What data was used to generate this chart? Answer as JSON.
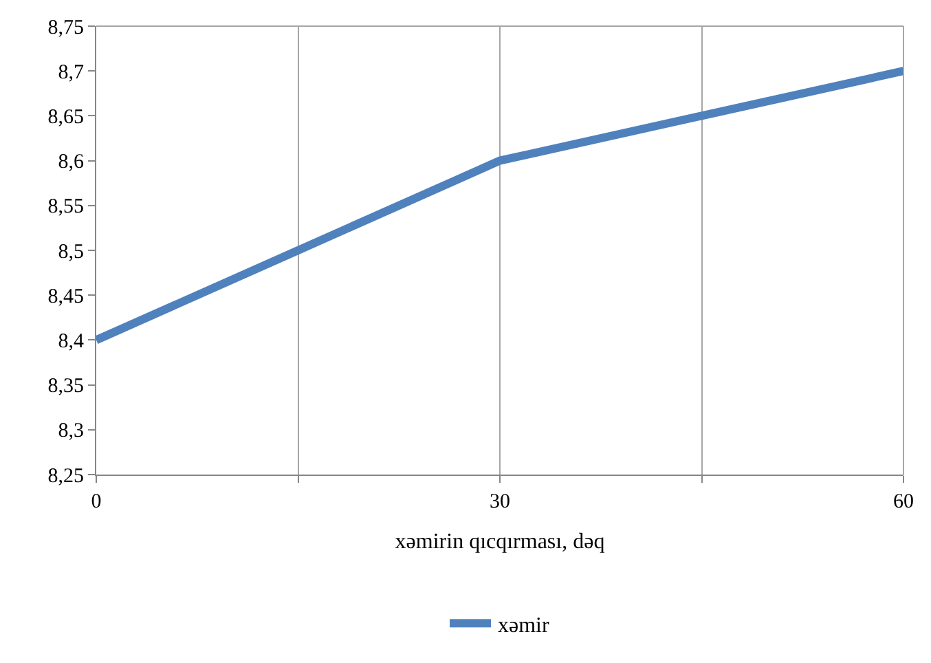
{
  "chart_data": {
    "type": "line",
    "xlabel": "xəmirin qıcqırması, dəq",
    "x": [
      0,
      15,
      30,
      45,
      60
    ],
    "series": [
      {
        "name": "xəmir",
        "color": "#4f81bd",
        "values": [
          8.4,
          8.5,
          8.6,
          8.65,
          8.7
        ]
      }
    ],
    "xlim": [
      0,
      60
    ],
    "xticks": [
      0,
      {
        "value": 15,
        "label": null
      },
      30,
      {
        "value": 45,
        "label": null
      },
      60
    ],
    "ylim": [
      8.25,
      8.75
    ],
    "yticks": [
      {
        "value": 8.25,
        "label": "8,25"
      },
      {
        "value": 8.3,
        "label": "8,3"
      },
      {
        "value": 8.35,
        "label": "8,35"
      },
      {
        "value": 8.4,
        "label": "8,4"
      },
      {
        "value": 8.45,
        "label": "8,45"
      },
      {
        "value": 8.5,
        "label": "8,5"
      },
      {
        "value": 8.55,
        "label": "8,55"
      },
      {
        "value": 8.6,
        "label": "8,6"
      },
      {
        "value": 8.65,
        "label": "8,65"
      },
      {
        "value": 8.7,
        "label": "8,7"
      },
      {
        "value": 8.75,
        "label": "8,75"
      }
    ],
    "grid": "x",
    "legend": "bottom",
    "marker": "none",
    "line_style": "solid"
  }
}
